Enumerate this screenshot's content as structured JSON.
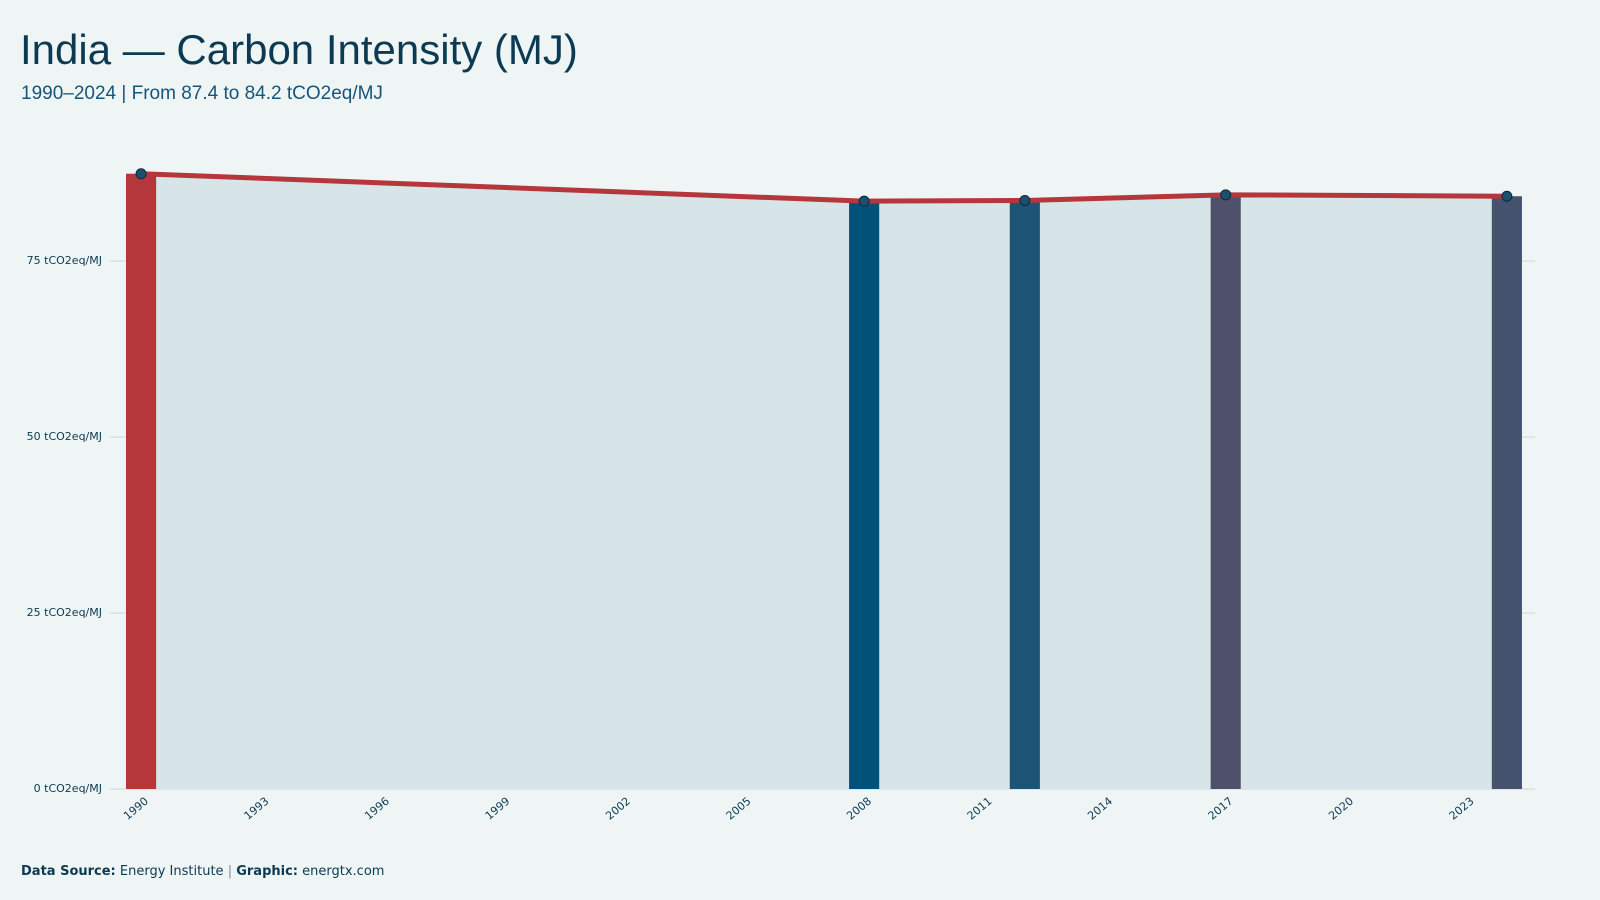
{
  "chart_data": {
    "type": "line",
    "title": "India — Carbon Intensity (MJ)",
    "subtitle": "1990–2024 | From 87.4 to 84.2 tCO2eq/MJ",
    "x": [
      1990,
      2008,
      2012,
      2017,
      2024
    ],
    "values": [
      87.4,
      83.5,
      83.6,
      84.4,
      84.2
    ],
    "line_color": "#b5373b",
    "bar_colors": [
      "#b5373b",
      "#00527a",
      "#1d5475",
      "#4f5069",
      "#44526e"
    ],
    "area_color": "#d7e4e8",
    "point_color": "#1d4f70",
    "xlim": [
      1989.6,
      2024.7
    ],
    "xticks": [
      1990,
      1993,
      1996,
      1999,
      2002,
      2005,
      2008,
      2011,
      2014,
      2017,
      2020,
      2023
    ],
    "ylim": [
      0,
      90
    ],
    "yticks": [
      {
        "value": 0,
        "label": "0 tCO2eq/MJ"
      },
      {
        "value": 25,
        "label": "25 tCO2eq/MJ"
      },
      {
        "value": 50,
        "label": "50 tCO2eq/MJ"
      },
      {
        "value": 75,
        "label": "75 tCO2eq/MJ"
      }
    ],
    "grid": true,
    "footer": {
      "source_label": "Data Source:",
      "source": "Energy Institute",
      "separator": "|",
      "graphic_label": "Graphic:",
      "graphic": "energtx.com"
    }
  }
}
